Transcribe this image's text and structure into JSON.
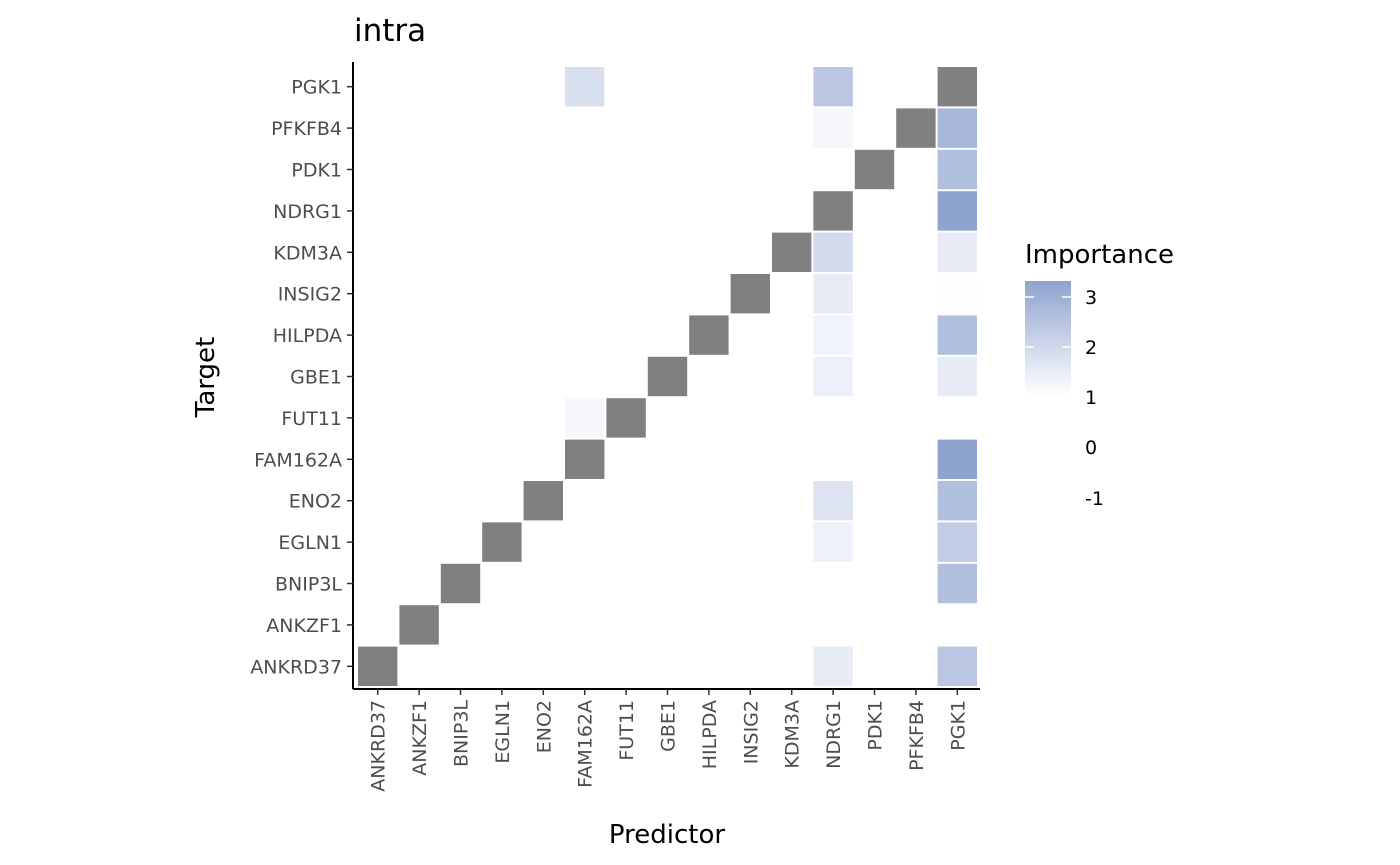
{
  "chart_data": {
    "type": "heatmap",
    "title": "intra",
    "xlabel": "Predictor",
    "ylabel": "Target",
    "x_categories": [
      "ANKRD37",
      "ANKZF1",
      "BNIP3L",
      "EGLN1",
      "ENO2",
      "FAM162A",
      "FUT11",
      "GBE1",
      "HILPDA",
      "INSIG2",
      "KDM3A",
      "NDRG1",
      "PDK1",
      "PFKFB4",
      "PGK1"
    ],
    "y_categories": [
      "ANKRD37",
      "ANKZF1",
      "BNIP3L",
      "EGLN1",
      "ENO2",
      "FAM162A",
      "FUT11",
      "GBE1",
      "HILPDA",
      "INSIG2",
      "KDM3A",
      "NDRG1",
      "PDK1",
      "PFKFB4",
      "PGK1"
    ],
    "diagonal_color": "#808080",
    "color_scale": {
      "low": "#ffffff",
      "high": "#8fa3cf",
      "domain": [
        1,
        3.3
      ]
    },
    "legend": {
      "title": "Importance",
      "ticks": [
        "3",
        "2",
        "1",
        "0",
        "-1"
      ],
      "position": "right"
    },
    "cells": [
      {
        "x": "FAM162A",
        "y": "PGK1",
        "value": 1.8
      },
      {
        "x": "NDRG1",
        "y": "PGK1",
        "value": 2.4
      },
      {
        "x": "PGK1",
        "y": "PGK1",
        "value": null
      },
      {
        "x": "NDRG1",
        "y": "PFKFB4",
        "value": 1.2
      },
      {
        "x": "PFKFB4",
        "y": "PFKFB4",
        "value": null
      },
      {
        "x": "PGK1",
        "y": "PFKFB4",
        "value": 2.8
      },
      {
        "x": "PDK1",
        "y": "PDK1",
        "value": null
      },
      {
        "x": "PGK1",
        "y": "PDK1",
        "value": 2.6
      },
      {
        "x": "NDRG1",
        "y": "NDRG1",
        "value": null
      },
      {
        "x": "PGK1",
        "y": "NDRG1",
        "value": 3.3
      },
      {
        "x": "KDM3A",
        "y": "KDM3A",
        "value": null
      },
      {
        "x": "NDRG1",
        "y": "KDM3A",
        "value": 1.9
      },
      {
        "x": "PGK1",
        "y": "KDM3A",
        "value": 1.5
      },
      {
        "x": "INSIG2",
        "y": "INSIG2",
        "value": null
      },
      {
        "x": "NDRG1",
        "y": "INSIG2",
        "value": 1.5
      },
      {
        "x": "PGK1",
        "y": "INSIG2",
        "value": 1.05
      },
      {
        "x": "HILPDA",
        "y": "HILPDA",
        "value": null
      },
      {
        "x": "NDRG1",
        "y": "HILPDA",
        "value": 1.3
      },
      {
        "x": "PGK1",
        "y": "HILPDA",
        "value": 2.6
      },
      {
        "x": "GBE1",
        "y": "GBE1",
        "value": null
      },
      {
        "x": "NDRG1",
        "y": "GBE1",
        "value": 1.4
      },
      {
        "x": "PGK1",
        "y": "GBE1",
        "value": 1.5
      },
      {
        "x": "FAM162A",
        "y": "FUT11",
        "value": 1.2
      },
      {
        "x": "FUT11",
        "y": "FUT11",
        "value": null
      },
      {
        "x": "FAM162A",
        "y": "FAM162A",
        "value": null
      },
      {
        "x": "PGK1",
        "y": "FAM162A",
        "value": 3.3
      },
      {
        "x": "ENO2",
        "y": "ENO2",
        "value": null
      },
      {
        "x": "NDRG1",
        "y": "ENO2",
        "value": 1.7
      },
      {
        "x": "PGK1",
        "y": "ENO2",
        "value": 2.6
      },
      {
        "x": "EGLN1",
        "y": "EGLN1",
        "value": null
      },
      {
        "x": "NDRG1",
        "y": "EGLN1",
        "value": 1.35
      },
      {
        "x": "PGK1",
        "y": "EGLN1",
        "value": 2.3
      },
      {
        "x": "BNIP3L",
        "y": "BNIP3L",
        "value": null
      },
      {
        "x": "PGK1",
        "y": "BNIP3L",
        "value": 2.6
      },
      {
        "x": "ANKZF1",
        "y": "ANKZF1",
        "value": null
      },
      {
        "x": "ANKRD37",
        "y": "ANKRD37",
        "value": null
      },
      {
        "x": "NDRG1",
        "y": "ANKRD37",
        "value": 1.5
      },
      {
        "x": "PGK1",
        "y": "ANKRD37",
        "value": 2.4
      }
    ]
  }
}
